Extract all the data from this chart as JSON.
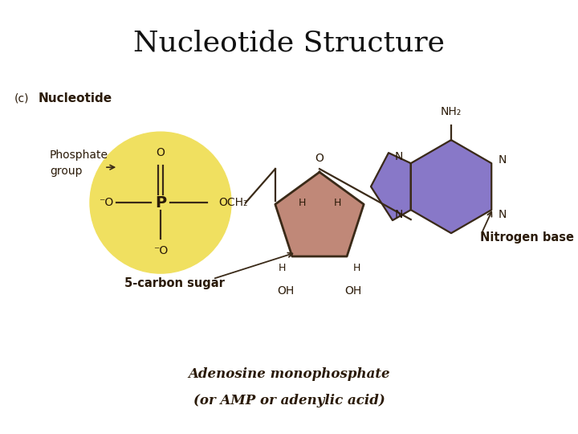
{
  "title": "Nucleotide Structure",
  "title_fontsize": 26,
  "bg_top": "#ffffff",
  "panel_bg": "#e8cbbf",
  "label_c": "(c)",
  "label_nucleotide": "Nucleotide",
  "phosphate_label_line1": "Phosphate",
  "phosphate_label_line2": "group",
  "sugar_label": "5-carbon sugar",
  "nitrogen_base_label": "Nitrogen base",
  "bottom_text1": "Adenosine monophosphate",
  "bottom_text2": "(or AMP or adenylic acid)",
  "phosphate_color": "#f0e060",
  "sugar_color": "#c08878",
  "nitrogen_base_color": "#8878c8",
  "bond_color": "#3a2a18",
  "text_color": "#2a1a08"
}
